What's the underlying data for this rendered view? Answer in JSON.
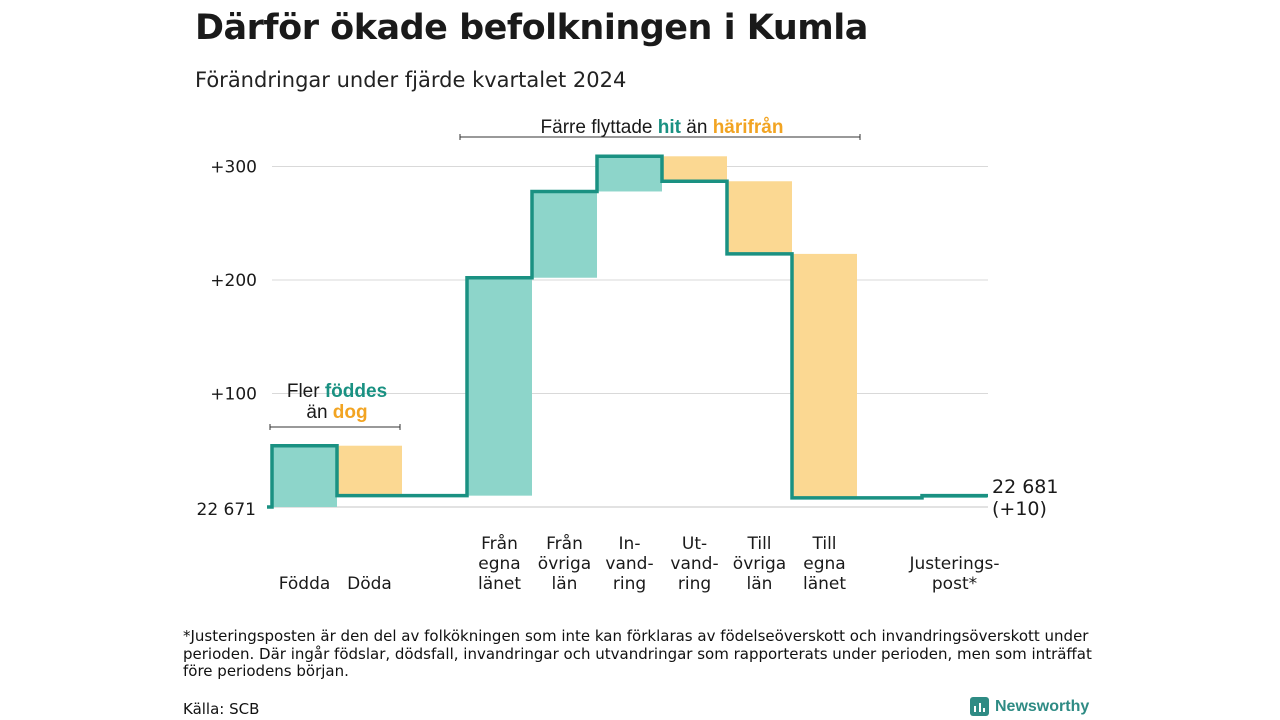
{
  "title": "Därför ökade befolkningen i Kumla",
  "subtitle": "Förändringar under fjärde kvartalet 2024",
  "footnote": "*Justeringsposten är den del av folkökningen som inte kan förklaras av födelseöverskott och invandringsöverskott under perioden. Där ingår födslar, dödsfall, invandringar och utvandringar som rapporterats under perioden, men som inträffat före periodens början.",
  "source": "Källa: SCB",
  "brand": "Newsworthy",
  "chart_data": {
    "type": "waterfall",
    "start": {
      "value": 22671,
      "label": "22 671"
    },
    "end": {
      "value": 22681,
      "label": "22 681",
      "change_label": "(+10)"
    },
    "y_ticks": [
      {
        "value": 100,
        "label": "+100"
      },
      {
        "value": 200,
        "label": "+200"
      },
      {
        "value": 300,
        "label": "+300"
      }
    ],
    "grid": true,
    "steps": [
      {
        "label": "Födda",
        "lines": [
          "Födda"
        ],
        "change": 54,
        "kind": "in"
      },
      {
        "label": "Döda",
        "lines": [
          "Döda"
        ],
        "change": -44,
        "kind": "out"
      },
      {
        "label": "",
        "lines": [],
        "change": 0,
        "kind": "none"
      },
      {
        "label": "Från egna länet",
        "lines": [
          "Från",
          "egna",
          "länet"
        ],
        "change": 192,
        "kind": "in"
      },
      {
        "label": "Från övriga län",
        "lines": [
          "Från",
          "övriga",
          "län"
        ],
        "change": 76,
        "kind": "in"
      },
      {
        "label": "In-vandring",
        "lines": [
          "In-",
          "vand-",
          "ring"
        ],
        "change": 31,
        "kind": "in"
      },
      {
        "label": "Ut-vandring",
        "lines": [
          "Ut-",
          "vand-",
          "ring"
        ],
        "change": -22,
        "kind": "out"
      },
      {
        "label": "Till övriga län",
        "lines": [
          "Till",
          "övriga",
          "län"
        ],
        "change": -64,
        "kind": "out"
      },
      {
        "label": "Till egna länet",
        "lines": [
          "Till",
          "egna",
          "länet"
        ],
        "change": -215,
        "kind": "out"
      },
      {
        "label": "",
        "lines": [],
        "change": 0,
        "kind": "none"
      },
      {
        "label": "Justeringspost*",
        "lines": [
          "Justerings-",
          "post*"
        ],
        "change": 2,
        "kind": "in"
      }
    ],
    "annotations": [
      {
        "lines": [
          [
            "Fler ",
            "föddes"
          ],
          [
            "än ",
            "dog"
          ]
        ]
      },
      {
        "lines": [
          [
            "Färre flyttade ",
            "hit",
            " än ",
            "härifrån"
          ]
        ]
      }
    ],
    "colors": {
      "in_fill": "#8dd5ca",
      "out_fill": "#fbd892",
      "step_line": "#1a9182",
      "in_text": "#1a9182",
      "out_text": "#f2a422",
      "grid": "#d9d9d9"
    }
  }
}
